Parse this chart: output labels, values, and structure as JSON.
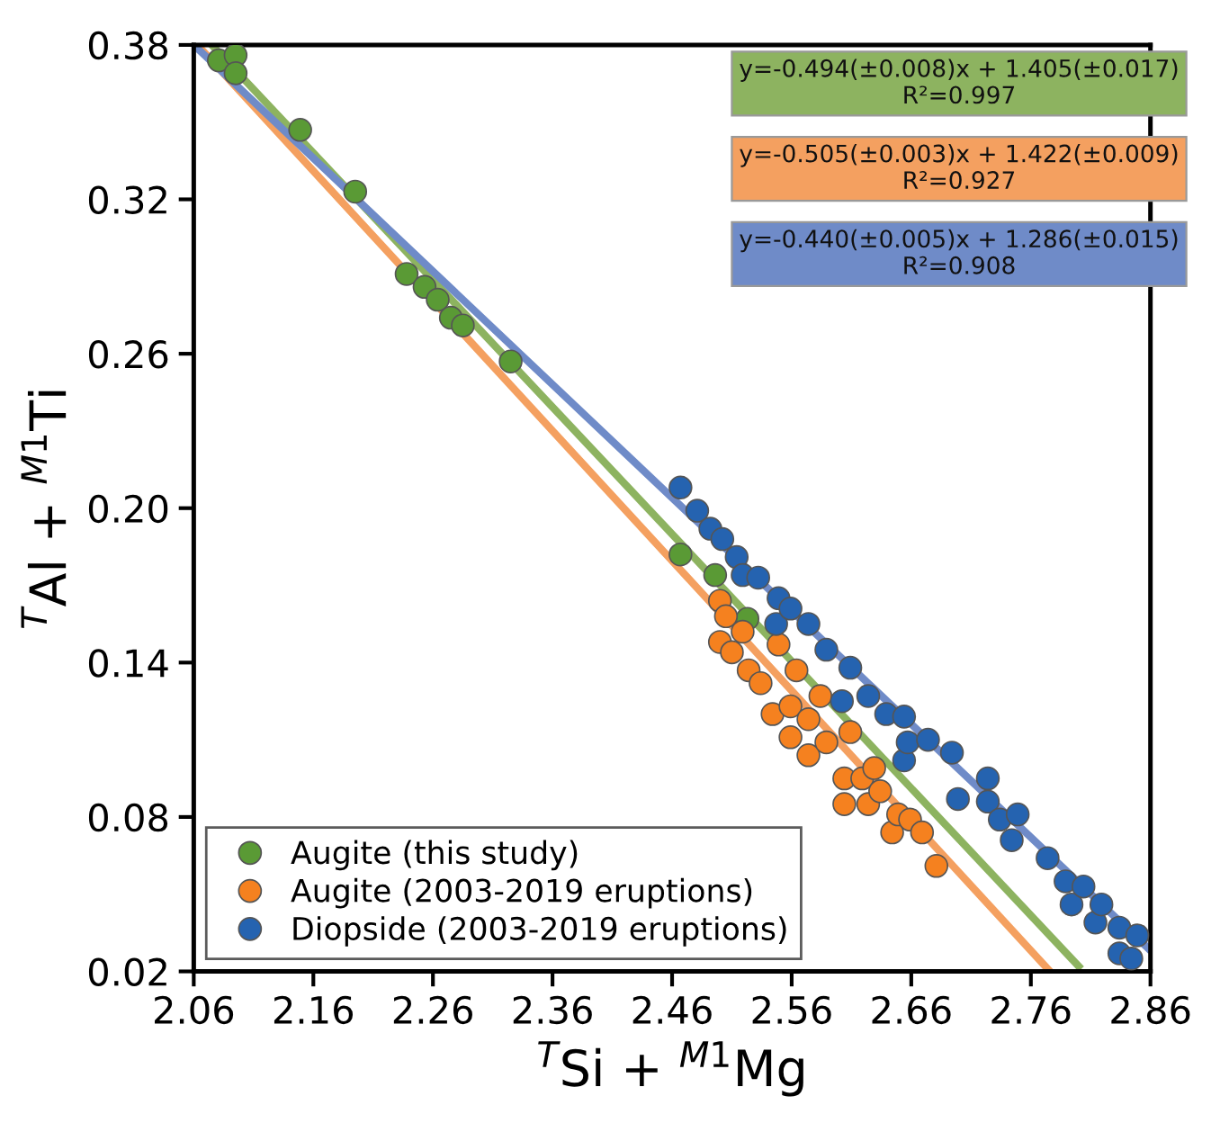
{
  "chart_data": {
    "type": "scatter",
    "xlabel": "$^{T}$Si + $^{M1}$Mg",
    "ylabel": "$^{T}$Al + $^{M1}$Ti",
    "xlim": [
      2.06,
      2.86
    ],
    "ylim": [
      0.02,
      0.38
    ],
    "xticks": [
      2.06,
      2.16,
      2.26,
      2.36,
      2.46,
      2.56,
      2.66,
      2.76,
      2.86
    ],
    "yticks": [
      0.02,
      0.08,
      0.14,
      {
        "value": 0.2,
        "label": "0.20"
      },
      0.26,
      0.32,
      0.38
    ],
    "grid": false,
    "legend": "bottom left",
    "marker": "circle",
    "annotations": [
      "y=-0.494(±0.008)x + 1.405(±0.017)\nR²=0.997",
      "y=-0.505(±0.003)x + 1.422(±0.009)\nR²=0.927",
      "y=-0.440(±0.005)x + 1.286(±0.015)\nR²=0.908"
    ],
    "series": [
      {
        "type": "line",
        "color": "#8db360",
        "x": [
          2.075,
          2.8
        ],
        "values": [
          0.38,
          0.022
        ],
        "marker": "none"
      },
      {
        "type": "line",
        "color": "#f4a060",
        "x": [
          2.063,
          2.776
        ],
        "values": [
          0.38,
          0.02
        ],
        "marker": "none"
      },
      {
        "type": "line",
        "color": "#6f8bc8",
        "x": [
          2.06,
          2.858
        ],
        "values": [
          0.38,
          0.029
        ],
        "marker": "none"
      },
      {
        "name": "Augite (this study)",
        "color": "#5a9a35",
        "x": [
          2.081,
          2.095,
          2.095,
          2.149,
          2.195,
          2.238,
          2.253,
          2.264,
          2.275,
          2.285,
          2.325,
          2.467,
          2.496,
          2.523
        ],
        "values": [
          0.374,
          0.376,
          0.369,
          0.347,
          0.323,
          0.291,
          0.286,
          0.281,
          0.274,
          0.271,
          0.257,
          0.182,
          0.174,
          0.157
        ]
      },
      {
        "name": "Augite (2003-2019 eruptions)",
        "color": "#f5811f",
        "x": [
          2.5,
          2.505,
          2.5,
          2.51,
          2.519,
          2.524,
          2.534,
          2.544,
          2.549,
          2.559,
          2.559,
          2.564,
          2.574,
          2.574,
          2.584,
          2.589,
          2.604,
          2.604,
          2.609,
          2.619,
          2.624,
          2.629,
          2.634,
          2.644,
          2.649,
          2.659,
          2.669,
          2.681
        ],
        "values": [
          0.164,
          0.158,
          0.148,
          0.144,
          0.152,
          0.137,
          0.132,
          0.12,
          0.147,
          0.123,
          0.111,
          0.137,
          0.118,
          0.104,
          0.127,
          0.109,
          0.095,
          0.085,
          0.113,
          0.095,
          0.085,
          0.099,
          0.09,
          0.074,
          0.081,
          0.079,
          0.074,
          0.061
        ]
      },
      {
        "name": "Diopside (2003-2019 eruptions)",
        "color": "#2563b0",
        "x": [
          2.467,
          2.481,
          2.492,
          2.502,
          2.514,
          2.519,
          2.532,
          2.547,
          2.549,
          2.559,
          2.574,
          2.589,
          2.602,
          2.609,
          2.624,
          2.639,
          2.654,
          2.654,
          2.657,
          2.674,
          2.694,
          2.699,
          2.724,
          2.724,
          2.734,
          2.744,
          2.749,
          2.774,
          2.789,
          2.794,
          2.804,
          2.814,
          2.819,
          2.834,
          2.834,
          2.844,
          2.849
        ],
        "values": [
          0.208,
          0.199,
          0.192,
          0.188,
          0.181,
          0.174,
          0.173,
          0.155,
          0.165,
          0.161,
          0.155,
          0.145,
          0.125,
          0.138,
          0.127,
          0.12,
          0.119,
          0.102,
          0.109,
          0.11,
          0.105,
          0.087,
          0.095,
          0.086,
          0.079,
          0.071,
          0.081,
          0.064,
          0.055,
          0.046,
          0.053,
          0.039,
          0.046,
          0.037,
          0.027,
          0.025,
          0.034
        ]
      }
    ]
  }
}
